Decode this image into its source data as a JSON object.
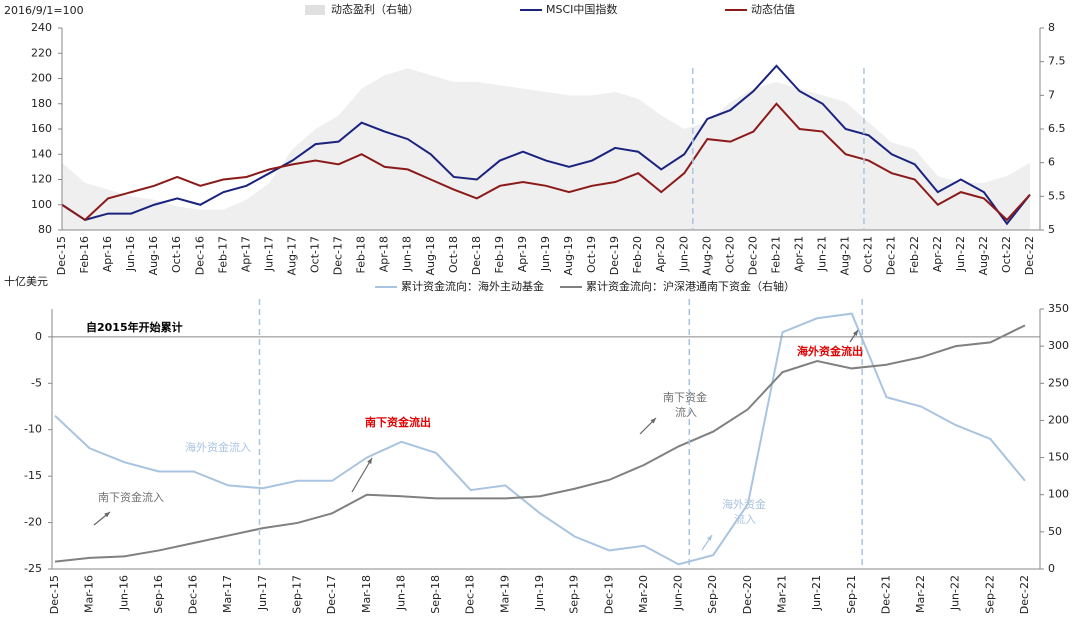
{
  "chart_data": [
    {
      "type": "line",
      "y_label": "2016/9/1=100",
      "categories": [
        "Dec-15",
        "Feb-16",
        "Apr-16",
        "Jun-16",
        "Aug-16",
        "Oct-16",
        "Dec-16",
        "Feb-17",
        "Apr-17",
        "Jun-17",
        "Aug-17",
        "Oct-17",
        "Dec-17",
        "Feb-18",
        "Apr-18",
        "Jun-18",
        "Aug-18",
        "Oct-18",
        "Dec-18",
        "Feb-19",
        "Apr-19",
        "Jun-19",
        "Aug-19",
        "Oct-19",
        "Dec-19",
        "Feb-20",
        "Apr-20",
        "Jun-20",
        "Aug-20",
        "Oct-20",
        "Dec-20",
        "Feb-21",
        "Apr-21",
        "Jun-21",
        "Aug-21",
        "Oct-21",
        "Dec-21",
        "Feb-22",
        "Apr-22",
        "Jun-22",
        "Aug-22",
        "Oct-22",
        "Dec-22"
      ],
      "ylim": [
        80,
        240
      ],
      "yticks": [
        80,
        100,
        120,
        140,
        160,
        180,
        200,
        220,
        240
      ],
      "y2lim": [
        5,
        8
      ],
      "y2ticks": [
        5,
        5.5,
        6,
        6.5,
        7,
        7.5,
        8
      ],
      "series": [
        {
          "name": "动态盈利（右轴）",
          "color": "#efefef",
          "kind": "area",
          "axis": "y2",
          "values": [
            6.0,
            5.7,
            5.6,
            5.5,
            5.45,
            5.35,
            5.3,
            5.3,
            5.45,
            5.7,
            6.2,
            6.5,
            6.7,
            7.1,
            7.3,
            7.4,
            7.3,
            7.2,
            7.2,
            7.15,
            7.1,
            7.05,
            7.0,
            7.0,
            7.05,
            6.95,
            6.7,
            6.5,
            6.6,
            6.9,
            7.1,
            7.2,
            7.1,
            7.0,
            6.9,
            6.6,
            6.3,
            6.2,
            5.8,
            5.7,
            5.7,
            5.8,
            6.0
          ]
        },
        {
          "name": "MSCI中国指数",
          "color": "#1a237e",
          "kind": "line",
          "values": [
            100,
            88,
            93,
            93,
            100,
            105,
            100,
            110,
            115,
            125,
            135,
            148,
            150,
            165,
            158,
            152,
            140,
            122,
            120,
            135,
            142,
            135,
            130,
            135,
            145,
            142,
            128,
            140,
            168,
            175,
            190,
            210,
            190,
            180,
            160,
            155,
            140,
            132,
            110,
            120,
            110,
            85,
            108
          ]
        },
        {
          "name": "动态估值",
          "color": "#8b1a1a",
          "kind": "line",
          "values": [
            100,
            88,
            105,
            110,
            115,
            122,
            115,
            120,
            122,
            128,
            132,
            135,
            132,
            140,
            130,
            128,
            120,
            112,
            105,
            115,
            118,
            115,
            110,
            115,
            118,
            125,
            110,
            125,
            152,
            150,
            158,
            180,
            160,
            158,
            140,
            135,
            125,
            120,
            100,
            110,
            105,
            88,
            108
          ]
        }
      ]
    },
    {
      "type": "line",
      "y_label": "十亿美元",
      "categories": [
        "Dec-15",
        "Mar-16",
        "Jun-16",
        "Sep-16",
        "Dec-16",
        "Mar-17",
        "Jun-17",
        "Sep-17",
        "Dec-17",
        "Mar-18",
        "Jun-18",
        "Sep-18",
        "Dec-18",
        "Mar-19",
        "Jun-19",
        "Sep-19",
        "Dec-19",
        "Mar-20",
        "Jun-20",
        "Sep-20",
        "Dec-20",
        "Mar-21",
        "Jun-21",
        "Sep-21",
        "Dec-21",
        "Mar-22",
        "Jun-22",
        "Sep-22",
        "Dec-22"
      ],
      "ylim": [
        -25,
        3
      ],
      "yticks": [
        -25,
        -20,
        -15,
        -10,
        -5,
        0
      ],
      "y2lim": [
        0,
        350
      ],
      "y2ticks": [
        0,
        50,
        100,
        150,
        200,
        250,
        300,
        350
      ],
      "series": [
        {
          "name": "累计资金流向：海外主动基金",
          "color": "#a9c4e0",
          "kind": "line",
          "values": [
            -8.5,
            -12,
            -13.5,
            -14.5,
            -14.5,
            -16,
            -16.3,
            -15.5,
            -15.5,
            -13,
            -11.3,
            -12.5,
            -16.5,
            -16,
            -19,
            -21.5,
            -23,
            -22.5,
            -24.5,
            -23.5,
            -18,
            0.5,
            2,
            2.5,
            -6.5,
            -7.5,
            -9.5,
            -11,
            -15.5
          ]
        },
        {
          "name": "累计资金流向：沪深港通南下资金（右轴）",
          "color": "#808080",
          "kind": "line",
          "axis": "y2",
          "values": [
            10,
            15,
            17,
            25,
            35,
            45,
            55,
            62,
            75,
            100,
            98,
            95,
            95,
            95,
            98,
            108,
            120,
            140,
            165,
            185,
            215,
            265,
            280,
            270,
            275,
            285,
            300,
            305,
            328
          ]
        }
      ],
      "annotations": [
        {
          "lines": [
            "自2015年开始累计"
          ],
          "color": "#000000"
        },
        {
          "lines": [
            "海外资金流入"
          ],
          "color": "#a9c4e0"
        },
        {
          "lines": [
            "南下资金流出"
          ],
          "color": "#e00000"
        },
        {
          "lines": [
            "南下资金流入"
          ],
          "color": "#707070"
        },
        {
          "lines": [
            "南下资金",
            "流入"
          ],
          "color": "#707070"
        },
        {
          "lines": [
            "海外资金",
            "流入"
          ],
          "color": "#a9c4e0"
        },
        {
          "lines": [
            "海外资金流出"
          ],
          "color": "#e00000"
        }
      ]
    }
  ]
}
